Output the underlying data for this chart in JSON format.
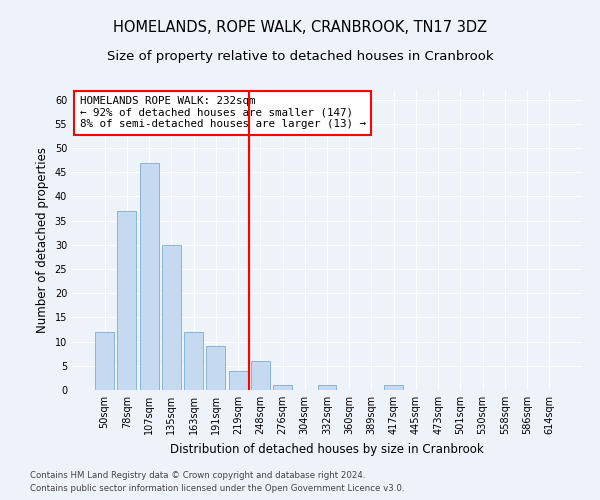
{
  "title": "HOMELANDS, ROPE WALK, CRANBROOK, TN17 3DZ",
  "subtitle": "Size of property relative to detached houses in Cranbrook",
  "xlabel": "Distribution of detached houses by size in Cranbrook",
  "ylabel": "Number of detached properties",
  "categories": [
    "50sqm",
    "78sqm",
    "107sqm",
    "135sqm",
    "163sqm",
    "191sqm",
    "219sqm",
    "248sqm",
    "276sqm",
    "304sqm",
    "332sqm",
    "360sqm",
    "389sqm",
    "417sqm",
    "445sqm",
    "473sqm",
    "501sqm",
    "530sqm",
    "558sqm",
    "586sqm",
    "614sqm"
  ],
  "values": [
    12,
    37,
    47,
    30,
    12,
    9,
    4,
    6,
    1,
    0,
    1,
    0,
    0,
    1,
    0,
    0,
    0,
    0,
    0,
    0,
    0
  ],
  "bar_color": "#c5d9f0",
  "bar_edge_color": "#7aaed6",
  "vline_x": 6.5,
  "vline_color": "red",
  "annotation_title": "HOMELANDS ROPE WALK: 232sqm",
  "annotation_line1": "← 92% of detached houses are smaller (147)",
  "annotation_line2": "8% of semi-detached houses are larger (13) →",
  "annotation_box_color": "white",
  "annotation_box_edge": "red",
  "ylim": [
    0,
    62
  ],
  "yticks": [
    0,
    5,
    10,
    15,
    20,
    25,
    30,
    35,
    40,
    45,
    50,
    55,
    60
  ],
  "footer1": "Contains HM Land Registry data © Crown copyright and database right 2024.",
  "footer2": "Contains public sector information licensed under the Open Government Licence v3.0.",
  "bg_color": "#eef2f9",
  "plot_bg_color": "#eef2f9",
  "title_fontsize": 10.5,
  "subtitle_fontsize": 9.5,
  "tick_fontsize": 7,
  "axis_label_fontsize": 8.5
}
